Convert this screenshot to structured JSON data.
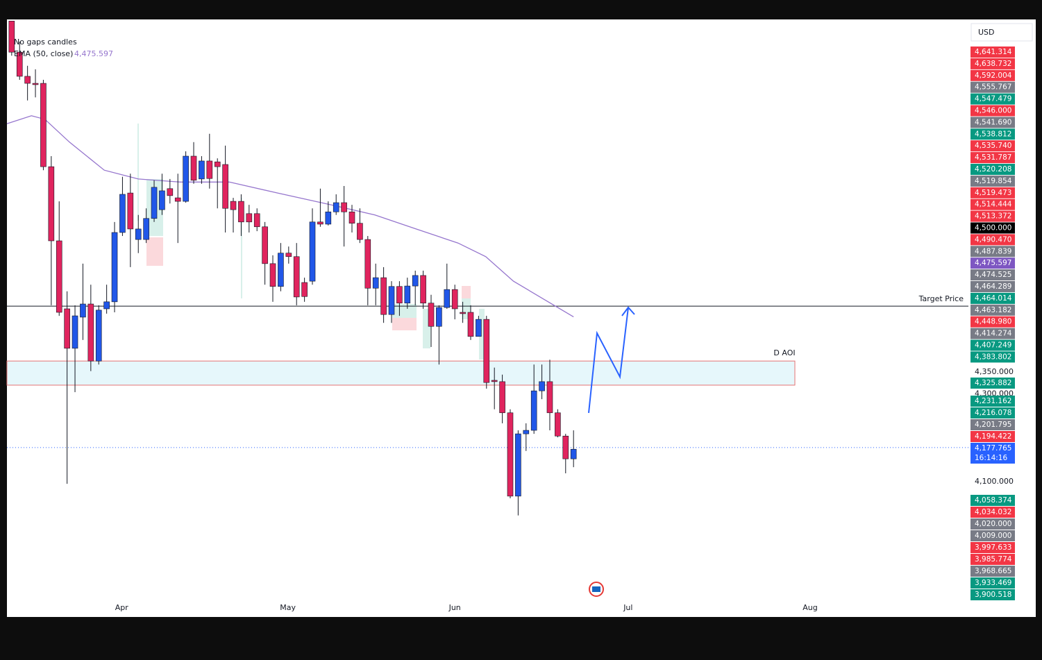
{
  "chart_data": {
    "type": "candlestick",
    "currency": "USD",
    "legend_title": "No gaps candles",
    "up_color": "#2157e8",
    "down_color": "#e0245e",
    "open": [
      5150,
      5079,
      5024,
      5008,
      5008,
      4818,
      4649,
      4494,
      4404,
      4475,
      4505,
      4375,
      4494,
      4510,
      4668,
      4758,
      4652,
      4652,
      4700,
      4720,
      4768,
      4747,
      4739,
      4842,
      4790,
      4831,
      4829,
      4823,
      4739,
      4739,
      4711,
      4711,
      4681,
      4597,
      4545,
      4621,
      4613,
      4554,
      4557,
      4692,
      4687,
      4715,
      4736,
      4715,
      4689,
      4652,
      4541,
      4565,
      4481,
      4545,
      4507,
      4546,
      4570,
      4507,
      4454,
      4497,
      4538,
      4486,
      4486,
      4431,
      4470,
      4331,
      4328,
      4257,
      4067,
      4209,
      4217,
      4307,
      4328,
      4257,
      4204,
      4152
    ],
    "high": [
      5150,
      5103,
      5048,
      5040,
      5016,
      4842,
      4739,
      4534,
      4502,
      4597,
      4549,
      4502,
      4549,
      4692,
      4795,
      4802,
      4708,
      4723,
      4787,
      4802,
      4790,
      4802,
      4853,
      4874,
      4842,
      4893,
      4837,
      4866,
      4747,
      4755,
      4731,
      4723,
      4692,
      4616,
      4644,
      4636,
      4644,
      4565,
      4723,
      4768,
      4739,
      4755,
      4774,
      4731,
      4723,
      4660,
      4597,
      4589,
      4557,
      4557,
      4565,
      4581,
      4581,
      4526,
      4502,
      4597,
      4549,
      4510,
      4502,
      4478,
      4478,
      4360,
      4344,
      4265,
      4217,
      4233,
      4367,
      4367,
      4378,
      4265,
      4209,
      4217
    ],
    "low": [
      5071,
      5016,
      4969,
      4976,
      4810,
      4502,
      4478,
      4095,
      4304,
      4423,
      4352,
      4367,
      4483,
      4486,
      4660,
      4589,
      4621,
      4644,
      4692,
      4708,
      4734,
      4644,
      4736,
      4779,
      4779,
      4768,
      4723,
      4668,
      4668,
      4660,
      4668,
      4671,
      4549,
      4510,
      4534,
      4597,
      4502,
      4510,
      4549,
      4681,
      4684,
      4708,
      4636,
      4668,
      4644,
      4502,
      4502,
      4462,
      4462,
      4478,
      4494,
      4502,
      4494,
      4407,
      4367,
      4494,
      4470,
      4462,
      4423,
      4431,
      4312,
      4265,
      4233,
      4062,
      4023,
      4170,
      4209,
      4288,
      4217,
      4201,
      4119,
      4133
    ],
    "close": [
      5079,
      5024,
      5008,
      5005,
      4818,
      4649,
      4486,
      4404,
      4478,
      4505,
      4375,
      4491,
      4510,
      4668,
      4755,
      4676,
      4676,
      4700,
      4771,
      4763,
      4752,
      4739,
      4842,
      4787,
      4831,
      4791,
      4818,
      4723,
      4720,
      4692,
      4692,
      4681,
      4597,
      4545,
      4621,
      4613,
      4521,
      4522,
      4692,
      4687,
      4715,
      4736,
      4715,
      4689,
      4652,
      4541,
      4565,
      4481,
      4545,
      4507,
      4546,
      4570,
      4507,
      4454,
      4497,
      4538,
      4494,
      4483,
      4431,
      4470,
      4326,
      4328,
      4257,
      4067,
      4209,
      4217,
      4307,
      4328,
      4257,
      4204,
      4152,
      4174
    ],
    "ema": {
      "name": "EMA (50, close)",
      "color": "#9575cd",
      "value_label": "4,475.597",
      "x": [
        -0.6,
        2.5,
        4.2,
        7.3,
        11.7,
        16.0,
        21.3,
        27.5,
        33.6,
        40.6,
        45.9,
        51.1,
        56.4,
        59.9,
        63.4,
        67.8,
        71
      ],
      "values": [
        4916,
        4934,
        4926,
        4874,
        4810,
        4790,
        4783,
        4783,
        4758,
        4730,
        4708,
        4676,
        4644,
        4613,
        4557,
        4510,
        4475.597
      ]
    },
    "target": {
      "label": "Target Price",
      "value": 4500
    },
    "aoi": {
      "label": "D AOI",
      "top": 4375,
      "bottom": 4320,
      "color": "#e6f7fb",
      "border": "#e57373"
    },
    "current": {
      "value": 4177.765,
      "color": "#2962ff"
    },
    "xlim": [
      -0.6,
      120.9
    ],
    "xticks": [
      {
        "value": 13.9,
        "label": "Apr"
      },
      {
        "value": 34.9,
        "label": "May"
      },
      {
        "value": 56,
        "label": "Jun"
      },
      {
        "value": 77.9,
        "label": "Jul"
      },
      {
        "value": 100.9,
        "label": "Aug"
      }
    ],
    "ylim": [
      3829.5,
      5150.5
    ],
    "yticks": [
      {
        "value": 4350,
        "label": "4,350.000"
      },
      {
        "value": 4300,
        "label": "4,300.000"
      },
      {
        "value": 4100,
        "label": "4,100.000"
      }
    ],
    "price_labels": [
      {
        "label": "4,641.314",
        "color": "#f23645"
      },
      {
        "label": "4,638.732",
        "color": "#f23645"
      },
      {
        "label": "4,592.004",
        "color": "#f23645"
      },
      {
        "label": "4,555.767",
        "color": "#787b86"
      },
      {
        "label": "4,547.479",
        "color": "#089981"
      },
      {
        "label": "4,546.000",
        "color": "#f23645"
      },
      {
        "label": "4,541.690",
        "color": "#787b86"
      },
      {
        "label": "4,538.812",
        "color": "#089981"
      },
      {
        "label": "4,535.740",
        "color": "#f23645"
      },
      {
        "label": "4,531.787",
        "color": "#f23645"
      },
      {
        "label": "4,520.208",
        "color": "#089981"
      },
      {
        "label": "4,519.854",
        "color": "#787b86"
      },
      {
        "label": "4,519.473",
        "color": "#f23645"
      },
      {
        "label": "4,514.444",
        "color": "#f23645"
      },
      {
        "label": "4,513.372",
        "color": "#f23645"
      },
      {
        "label": "4,500.000",
        "color": "#000000"
      },
      {
        "label": "4,490.470",
        "color": "#f23645"
      },
      {
        "label": "4,487.839",
        "color": "#787b86"
      },
      {
        "label": "4,475.597",
        "color": "#7e57c2"
      },
      {
        "label": "4,474.525",
        "color": "#787b86"
      },
      {
        "label": "4,464.289",
        "color": "#787b86"
      },
      {
        "label": "4,464.014",
        "color": "#089981"
      },
      {
        "label": "4,463.182",
        "color": "#787b86"
      },
      {
        "label": "4,448.980",
        "color": "#f23645"
      },
      {
        "label": "4,414.274",
        "color": "#787b86"
      },
      {
        "label": "4,407.249",
        "color": "#089981"
      },
      {
        "label": "4,383.802",
        "color": "#089981"
      },
      {
        "label": "4,325.882",
        "color": "#089981"
      },
      {
        "label": "4,231.162",
        "color": "#089981"
      },
      {
        "label": "4,216.078",
        "color": "#089981"
      },
      {
        "label": "4,201.795",
        "color": "#787b86"
      },
      {
        "label": "4,194.422",
        "color": "#f23645"
      },
      {
        "label": "4,177.765",
        "color": "#2962ff",
        "timer": "16:14:16"
      },
      {
        "label": "4,058.374",
        "color": "#089981"
      },
      {
        "label": "4,034.032",
        "color": "#f23645"
      },
      {
        "label": "4,020.000",
        "color": "#787b86"
      },
      {
        "label": "4,009.000",
        "color": "#787b86"
      },
      {
        "label": "3,997.633",
        "color": "#f23645"
      },
      {
        "label": "3,985.774",
        "color": "#f23645"
      },
      {
        "label": "3,968.665",
        "color": "#787b86"
      },
      {
        "label": "3,933.469",
        "color": "#089981"
      },
      {
        "label": "3,900.518",
        "color": "#089981"
      }
    ]
  }
}
